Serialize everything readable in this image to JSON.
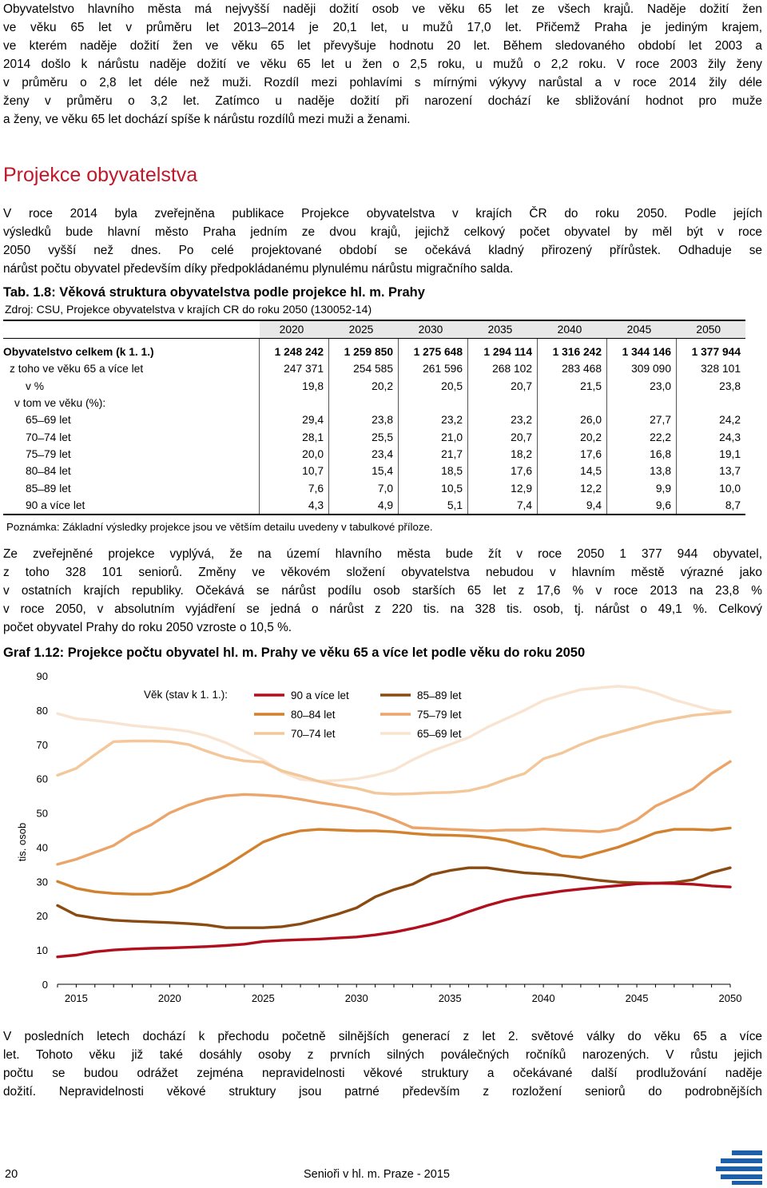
{
  "intro": {
    "lines": [
      "Obyvatelstvo hlavního města má nejvyšší naději dožití osob ve věku 65 let ze všech krajů. Naděje dožití žen",
      "ve věku 65 let v průměru let 2013–2014 je 20,1 let, u mužů 17,0 let. Přičemž Praha je jediným krajem,",
      "ve kterém naděje dožití žen ve věku 65 let převyšuje hodnotu 20 let. Během sledovaného období let 2003 a",
      "2014 došlo k nárůstu naděje dožití ve věku 65 let u žen o 2,5 roku, u mužů o 2,2 roku. V roce 2003 žily ženy",
      "v průměru o 2,8 let déle než muži. Rozdíl mezi pohlavími s mírnými výkyvy narůstal a v roce 2014 žily déle",
      "ženy v průměru o 3,2 let. Zatímco u naděje dožití při narození dochází ke sbližování hodnot pro muže",
      "a ženy, ve věku 65 let dochází spíše k nárůstu rozdílů mezi muži a ženami."
    ]
  },
  "section_heading": "Projekce obyvatelstva",
  "section_text": {
    "lines": [
      "V roce 2014 byla zveřejněna publikace Projekce obyvatelstva v krajích ČR do roku 2050. Podle jejích",
      "výsledků bude hlavní město Praha jedním ze dvou krajů, jejichž celkový počet obyvatel by měl být v roce",
      "2050 vyšší než dnes. Po celé projektované období se očekává kladný přirozený přírůstek. Odhaduje se",
      "nárůst počtu obyvatel především díky předpokládanému plynulému nárůstu migračního salda."
    ]
  },
  "table": {
    "title": "Tab. 1.8: Věková struktura obyvatelstva podle projekce hl. m. Prahy",
    "source": "Zdroj: CSU, Projekce obyvatelstva v krajích CR do roku 2050 (130052-14)",
    "years": [
      "2020",
      "2025",
      "2030",
      "2035",
      "2040",
      "2045",
      "2050"
    ],
    "rows": [
      {
        "label": "Obyvatelstvo celkem (k 1. 1.)",
        "bold": true,
        "indent": 0,
        "values": [
          "1 248 242",
          "1 259 850",
          "1 275 648",
          "1 294 114",
          "1 316 242",
          "1 344 146",
          "1 377 944"
        ]
      },
      {
        "label": "z toho ve věku 65 a více let",
        "bold": false,
        "indent": 8,
        "values": [
          "247 371",
          "254 585",
          "261 596",
          "268 102",
          "283 468",
          "309 090",
          "328 101"
        ]
      },
      {
        "label": "v %",
        "bold": false,
        "indent": 28,
        "values": [
          "19,8",
          "20,2",
          "20,5",
          "20,7",
          "21,5",
          "23,0",
          "23,8"
        ]
      },
      {
        "label": "v tom ve věku (%):",
        "bold": false,
        "indent": 14,
        "values": [
          "",
          "",
          "",
          "",
          "",
          "",
          ""
        ]
      },
      {
        "label": "65 ̶ 69 let",
        "bold": false,
        "indent": 28,
        "values": [
          "29,4",
          "23,8",
          "23,2",
          "23,2",
          "26,0",
          "27,7",
          "24,2"
        ]
      },
      {
        "label": "70 ̶ 74 let",
        "bold": false,
        "indent": 28,
        "values": [
          "28,1",
          "25,5",
          "21,0",
          "20,7",
          "20,2",
          "22,2",
          "24,3"
        ]
      },
      {
        "label": "75 ̶ 79 let",
        "bold": false,
        "indent": 28,
        "values": [
          "20,0",
          "23,4",
          "21,7",
          "18,2",
          "17,6",
          "16,8",
          "19,1"
        ]
      },
      {
        "label": "80 ̶ 84 let",
        "bold": false,
        "indent": 28,
        "values": [
          "10,7",
          "15,4",
          "18,5",
          "17,6",
          "14,5",
          "13,8",
          "13,7"
        ]
      },
      {
        "label": "85 ̶ 89 let",
        "bold": false,
        "indent": 28,
        "values": [
          "7,6",
          "7,0",
          "10,5",
          "12,9",
          "12,2",
          "9,9",
          "10,0"
        ]
      },
      {
        "label": "90 a více let",
        "bold": false,
        "indent": 28,
        "values": [
          "4,3",
          "4,9",
          "5,1",
          "7,4",
          "9,4",
          "9,6",
          "8,7"
        ]
      }
    ],
    "note": "Poznámka: Základní výsledky projekce jsou ve větším detailu uvedeny v tabulkové příloze."
  },
  "middle_text": {
    "lines": [
      "Ze zveřejněné projekce vyplývá, že na území hlavního města bude žít v roce 2050 1 377 944 obyvatel,",
      "z toho 328 101 seniorů. Změny ve věkovém složení obyvatelstva nebudou v hlavním městě výrazné jako",
      "v ostatních krajích republiky. Očekává se nárůst podílu osob starších 65 let z 17,6 % v roce 2013 na 23,8 %",
      "v roce 2050, v absolutním vyjádření se jedná o nárůst z 220 tis. na 328 tis. osob, tj. nárůst o 49,1 %. Celkový",
      "počet obyvatel Prahy do roku 2050 vzroste o 10,5 %."
    ]
  },
  "chart_data": {
    "type": "line",
    "title": "Graf 1.12: Projekce počtu obyvatel hl. m. Prahy ve věku 65 a více let podle věku do roku 2050",
    "ylabel": "tis. osob",
    "xlabel": "",
    "ylim": [
      0,
      90
    ],
    "yticks": [
      "0",
      "10",
      "20",
      "30",
      "40",
      "50",
      "60",
      "70",
      "80",
      "90"
    ],
    "xlim": [
      2014,
      2050
    ],
    "xticks": [
      "2015",
      "2020",
      "2025",
      "2030",
      "2035",
      "2040",
      "2045",
      "2050"
    ],
    "grid": false,
    "legend_title": "Věk (stav k 1. 1.):",
    "legend_position": "top",
    "x": [
      2014,
      2015,
      2016,
      2017,
      2018,
      2019,
      2020,
      2021,
      2022,
      2023,
      2024,
      2025,
      2026,
      2027,
      2028,
      2029,
      2030,
      2031,
      2032,
      2033,
      2034,
      2035,
      2036,
      2037,
      2038,
      2039,
      2040,
      2041,
      2042,
      2043,
      2044,
      2045,
      2046,
      2047,
      2048,
      2049,
      2050
    ],
    "series": [
      {
        "name": "90 a více let",
        "color": "#b00f1e",
        "values": [
          8.0,
          8.5,
          9.5,
          10.0,
          10.3,
          10.5,
          10.6,
          10.8,
          11.0,
          11.3,
          11.7,
          12.5,
          12.8,
          13.0,
          13.2,
          13.5,
          13.8,
          14.4,
          15.2,
          16.3,
          17.6,
          19.2,
          21.2,
          23.0,
          24.5,
          25.6,
          26.4,
          27.2,
          27.8,
          28.3,
          28.8,
          29.3,
          29.5,
          29.4,
          29.2,
          28.7,
          28.4
        ]
      },
      {
        "name": "85 ̶ 89 let",
        "color": "#8a4b12",
        "values": [
          23.0,
          20.2,
          19.3,
          18.7,
          18.4,
          18.2,
          18.0,
          17.7,
          17.3,
          16.5,
          16.5,
          16.5,
          16.8,
          17.6,
          19.0,
          20.5,
          22.3,
          25.5,
          27.6,
          29.2,
          32.0,
          33.2,
          34.0,
          34.0,
          33.2,
          32.5,
          32.2,
          31.8,
          31.0,
          30.3,
          29.8,
          29.6,
          29.5,
          29.7,
          30.5,
          32.6,
          34.0
        ]
      },
      {
        "name": "80 ̶ 84 let",
        "color": "#d2812e",
        "values": [
          30.0,
          28.0,
          27.0,
          26.5,
          26.3,
          26.3,
          27.0,
          28.8,
          31.5,
          34.5,
          38.0,
          41.5,
          43.5,
          44.8,
          45.2,
          45.0,
          44.8,
          44.8,
          44.5,
          44.0,
          43.6,
          43.5,
          43.3,
          42.8,
          42.0,
          40.5,
          39.3,
          37.5,
          37.0,
          38.5,
          40.0,
          42.0,
          44.2,
          45.2,
          45.2,
          45.0,
          45.6
        ]
      },
      {
        "name": "75 ̶ 79 let",
        "color": "#eba46a",
        "values": [
          35.0,
          36.5,
          38.5,
          40.5,
          44.0,
          46.5,
          50.0,
          52.3,
          54.0,
          55.0,
          55.4,
          55.2,
          54.8,
          54.0,
          53.0,
          52.2,
          51.3,
          50.0,
          48.0,
          45.7,
          45.5,
          45.2,
          45.0,
          44.8,
          45.0,
          45.0,
          45.3,
          45.0,
          44.8,
          44.5,
          45.3,
          48.0,
          52.0,
          54.5,
          57.0,
          61.5,
          65.0
        ]
      },
      {
        "name": "70 ̶ 74 let",
        "color": "#f3c79a",
        "values": [
          61.0,
          63.0,
          67.0,
          70.8,
          71.0,
          71.0,
          70.8,
          70.0,
          68.0,
          66.2,
          65.2,
          64.8,
          62.3,
          60.8,
          59.2,
          58.0,
          57.2,
          55.8,
          55.5,
          55.6,
          55.9,
          56.0,
          56.5,
          57.8,
          59.8,
          61.5,
          65.8,
          67.5,
          70.0,
          72.0,
          73.5,
          75.0,
          76.5,
          77.5,
          78.5,
          79.0,
          79.5
        ]
      },
      {
        "name": "65 ̶ 69 let",
        "color": "#f8e4d1",
        "values": [
          79.0,
          77.5,
          77.0,
          76.3,
          75.5,
          75.0,
          74.5,
          73.8,
          72.5,
          70.5,
          68.0,
          65.5,
          62.0,
          59.8,
          59.3,
          59.5,
          60.0,
          61.0,
          62.5,
          65.5,
          68.0,
          70.0,
          72.0,
          75.0,
          77.5,
          80.0,
          82.8,
          84.5,
          86.0,
          86.5,
          87.0,
          86.5,
          85.0,
          83.0,
          81.5,
          80.0,
          79.5
        ]
      }
    ]
  },
  "bottom_text": {
    "lines": [
      "V posledních letech dochází k přechodu početně silnějších generací z let 2. světové války do věku 65 a více",
      "let. Tohoto věku již také dosáhly osoby z prvních silných poválečných ročníků narozených. V růstu jejich",
      "počtu se budou odrážet zejména nepravidelnosti věkové struktury a očekávané další prodlužování naděje",
      "dožití. Nepravidelnosti věkové struktury jsou patrné především z rozložení seniorů do podrobnějších"
    ]
  },
  "footer": {
    "page_number": "20",
    "publication": "Senioři v hl. m. Praze - 2015"
  },
  "colors": {
    "heading": "#c0182a",
    "logo": "#1d5fa8"
  }
}
